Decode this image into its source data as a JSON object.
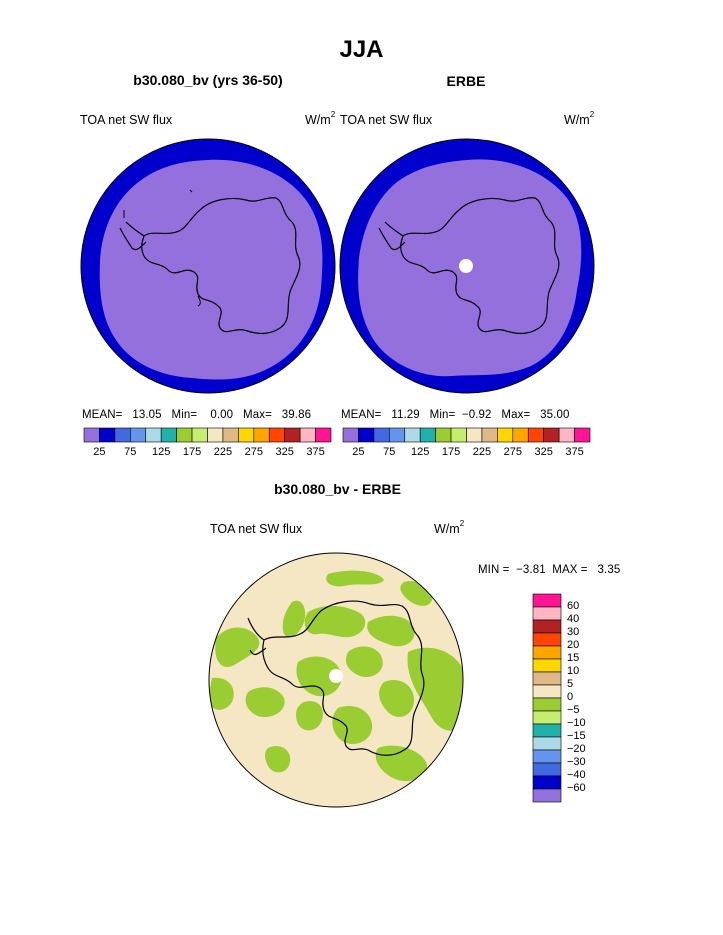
{
  "title": "JJA",
  "panels": [
    {
      "title": "b30.080_bv (yrs 36-50)",
      "field": "TOA net SW flux",
      "units_base": "W/m",
      "units_sup": "2",
      "stats": {
        "mean_label": "MEAN=",
        "mean": "13.05",
        "min_label": "Min=",
        "min": "0.00",
        "max_label": "Max=",
        "max": "39.86"
      }
    },
    {
      "title": "ERBE",
      "field": "TOA net SW flux",
      "units_base": "W/m",
      "units_sup": "2",
      "stats": {
        "mean_label": "MEAN=",
        "mean": "11.29",
        "min_label": "Min=",
        "min": "−0.92",
        "max_label": "Max=",
        "max": "35.00"
      }
    }
  ],
  "abs_colorbar": {
    "colors": [
      "#9370db",
      "#0000cd",
      "#4169e1",
      "#6495ed",
      "#add8e6",
      "#20b2aa",
      "#9acd32",
      "#c5ee6f",
      "#f5e6c4",
      "#deb887",
      "#ffd700",
      "#ffa500",
      "#ff4500",
      "#b22222",
      "#ffb6c1",
      "#ff1493"
    ],
    "tick_labels": [
      "25",
      "75",
      "125",
      "175",
      "225",
      "275",
      "325",
      "375"
    ]
  },
  "diff_panel": {
    "title": "b30.080_bv - ERBE",
    "field": "TOA net SW flux",
    "units_base": "W/m",
    "units_sup": "2",
    "min_label": "MIN =",
    "min": "−3.81",
    "max_label": "MAX =",
    "max": "3.35"
  },
  "diff_colorbar": {
    "colors_top_to_bottom": [
      "#ff1493",
      "#ffb6c1",
      "#b22222",
      "#ff4500",
      "#ffa500",
      "#ffd700",
      "#deb887",
      "#f5e6c4",
      "#9acd32",
      "#c5ee6f",
      "#20b2aa",
      "#add8e6",
      "#6495ed",
      "#4169e1",
      "#0000cd",
      "#9370db"
    ],
    "tick_labels_top_to_bottom": [
      "60",
      "40",
      "30",
      "20",
      "15",
      "10",
      "5",
      "0",
      "−5",
      "−10",
      "−15",
      "−20",
      "−30",
      "−40",
      "−60"
    ]
  },
  "map_colors": {
    "ocean_ring": "#0000cd",
    "interior": "#9370db",
    "diff_background": "#f5e6c4",
    "diff_negative": "#9acd32",
    "missing": "#ffffff",
    "coast": "#000000"
  }
}
